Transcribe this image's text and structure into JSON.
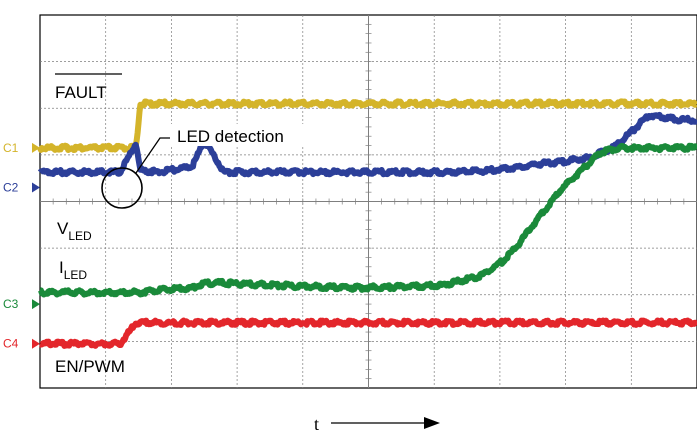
{
  "chart_data": {
    "type": "line",
    "x": [
      0,
      0.45,
      0.55,
      1.0,
      1.2,
      1.25,
      1.5,
      1.9,
      2.05,
      2.3,
      3.0,
      3.5,
      4.0,
      4.5,
      5.0,
      5.5,
      5.8,
      6.0,
      6.2,
      6.5,
      6.9,
      7.0,
      7.2,
      7.6,
      8.0,
      8.2
    ],
    "series": [
      {
        "name": "FAULT",
        "channel": "C1",
        "color": "#d4b42a",
        "values": [
          -0.25,
          -0.25,
          -0.25,
          -0.25,
          -0.25,
          0.7,
          0.7,
          0.7,
          0.7,
          0.7,
          0.7,
          0.7,
          0.7,
          0.7,
          0.7,
          0.7,
          0.7,
          0.7,
          0.7,
          0.7,
          0.7,
          0.7,
          0.7,
          0.7,
          0.7,
          0.7
        ]
      },
      {
        "name": "VLED",
        "channel": "C2",
        "color": "#2c3f99",
        "values": [
          0.08,
          0.08,
          0.08,
          0.08,
          0.7,
          0.12,
          0.08,
          0.2,
          0.75,
          0.08,
          0.08,
          0.08,
          0.08,
          0.08,
          0.08,
          0.1,
          0.15,
          0.2,
          0.25,
          0.3,
          0.4,
          0.5,
          0.65,
          1.3,
          1.2,
          1.2
        ]
      },
      {
        "name": "ILED",
        "channel": "C3",
        "color": "#1a8a3a",
        "values": [
          0.0,
          0.0,
          0.0,
          0.0,
          0.0,
          0.0,
          0.05,
          0.1,
          0.2,
          0.2,
          0.15,
          0.12,
          0.1,
          0.12,
          0.15,
          0.35,
          0.7,
          1.1,
          1.55,
          2.2,
          2.85,
          3.0,
          3.1,
          3.1,
          3.1,
          3.1
        ]
      },
      {
        "name": "EN/PWM",
        "channel": "C4",
        "color": "#e3262b",
        "values": [
          -0.25,
          -0.25,
          -0.25,
          -0.25,
          0.2,
          0.2,
          0.2,
          0.2,
          0.2,
          0.2,
          0.2,
          0.2,
          0.2,
          0.2,
          0.2,
          0.2,
          0.2,
          0.2,
          0.2,
          0.2,
          0.2,
          0.2,
          0.2,
          0.2,
          0.2,
          0.2
        ]
      }
    ],
    "grid": true,
    "xlabel": "t",
    "labels": {
      "fault": "FAULT",
      "vled_main": "V",
      "vled_sub": "LED",
      "iled_main": "I",
      "iled_sub": "LED",
      "enpwm": "EN/PWM",
      "annotation": "LED detection"
    },
    "channel_markers": [
      "C1",
      "C2",
      "C3",
      "C4"
    ]
  }
}
